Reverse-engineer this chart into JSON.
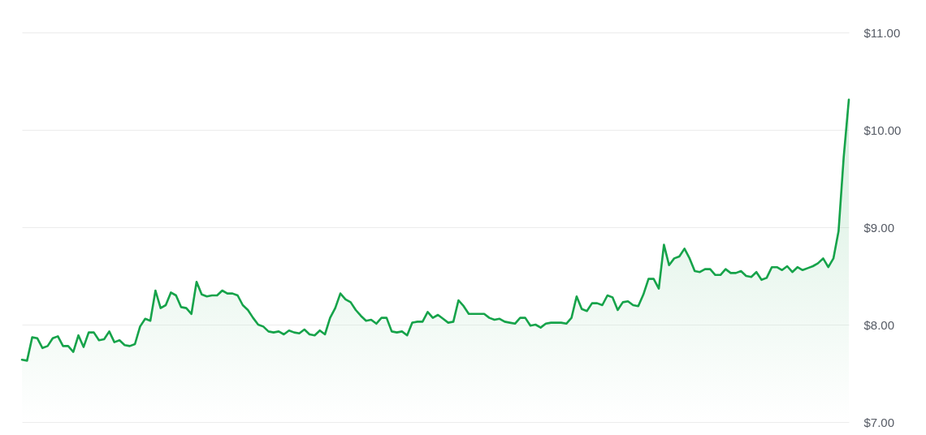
{
  "chart_data": {
    "type": "area",
    "categories": [
      null,
      null,
      null,
      null,
      null,
      null,
      null,
      null,
      null,
      null,
      null,
      null,
      null,
      null,
      null,
      null,
      null,
      null,
      null,
      null,
      null,
      null,
      null,
      null,
      null,
      null,
      null,
      null,
      null,
      null,
      null,
      null,
      null,
      null,
      null,
      null,
      null,
      null,
      null,
      null,
      null,
      null,
      null,
      null,
      null,
      null,
      null,
      null,
      null,
      null,
      null,
      null,
      null,
      null,
      null,
      null,
      null,
      null,
      null,
      null,
      null,
      null,
      null,
      null,
      null,
      null,
      null,
      null,
      null,
      null,
      null,
      null,
      null,
      null,
      null,
      null,
      null,
      null,
      null,
      null,
      null,
      null,
      null,
      null,
      null,
      null,
      null,
      null,
      null,
      null,
      null,
      null,
      null,
      null,
      null,
      null,
      null,
      null,
      null,
      null,
      null,
      null,
      null,
      null,
      null,
      null,
      null,
      null,
      null,
      null,
      null,
      null,
      null,
      null,
      null,
      null,
      null,
      null,
      null,
      null,
      null,
      null,
      null,
      null,
      null,
      null,
      null,
      null,
      null,
      null,
      null,
      null,
      null,
      null,
      null,
      null,
      null,
      null,
      null,
      null,
      null,
      null,
      null,
      null,
      null,
      null,
      null,
      null,
      null,
      null,
      null,
      null,
      null,
      null,
      null,
      null,
      null,
      null,
      null,
      null,
      null,
      null
    ],
    "series": [
      {
        "color": "#16a34a",
        "values": [
          7.64,
          7.63,
          7.87,
          7.86,
          7.76,
          7.78,
          7.86,
          7.88,
          7.78,
          7.78,
          7.72,
          7.89,
          7.77,
          7.92,
          7.92,
          7.84,
          7.85,
          7.93,
          7.82,
          7.84,
          7.79,
          7.78,
          7.8,
          7.98,
          8.06,
          8.04,
          8.35,
          8.17,
          8.2,
          8.33,
          8.3,
          8.18,
          8.17,
          8.11,
          8.44,
          8.31,
          8.29,
          8.3,
          8.3,
          8.35,
          8.32,
          8.32,
          8.3,
          8.2,
          8.15,
          8.07,
          8.0,
          7.98,
          7.93,
          7.92,
          7.93,
          7.9,
          7.94,
          7.92,
          7.91,
          7.95,
          7.9,
          7.89,
          7.94,
          7.9,
          8.07,
          8.17,
          8.32,
          8.26,
          8.23,
          8.15,
          8.09,
          8.04,
          8.05,
          8.01,
          8.07,
          8.07,
          7.93,
          7.92,
          7.93,
          7.89,
          8.02,
          8.03,
          8.03,
          8.13,
          8.07,
          8.1,
          8.06,
          8.02,
          8.03,
          8.25,
          8.19,
          8.11,
          8.11,
          8.11,
          8.11,
          8.07,
          8.05,
          8.06,
          8.03,
          8.02,
          8.01,
          8.07,
          8.07,
          7.99,
          8.0,
          7.97,
          8.01,
          8.02,
          8.02,
          8.02,
          8.01,
          8.07,
          8.29,
          8.16,
          8.14,
          8.22,
          8.22,
          8.2,
          8.3,
          8.28,
          8.15,
          8.23,
          8.24,
          8.2,
          8.19,
          8.31,
          8.47,
          8.47,
          8.37,
          8.82,
          8.61,
          8.68,
          8.7,
          8.78,
          8.68,
          8.55,
          8.54,
          8.57,
          8.57,
          8.51,
          8.51,
          8.57,
          8.53,
          8.53,
          8.55,
          8.5,
          8.49,
          8.54,
          8.46,
          8.48,
          8.59,
          8.59,
          8.56,
          8.6,
          8.54,
          8.59,
          8.56,
          8.58,
          8.6,
          8.63,
          8.68,
          8.59,
          8.68,
          8.96,
          9.72,
          10.31
        ]
      }
    ],
    "ylim": [
      7,
      11
    ],
    "yticks": [
      {
        "value": 7,
        "label": "$7.00"
      },
      {
        "value": 8,
        "label": "$8.00"
      },
      {
        "value": 9,
        "label": "$9.00"
      },
      {
        "value": 10,
        "label": "$10.00"
      },
      {
        "value": 11,
        "label": "$11.00"
      }
    ],
    "grid": "y",
    "marker": "none",
    "line_style": "solid"
  }
}
